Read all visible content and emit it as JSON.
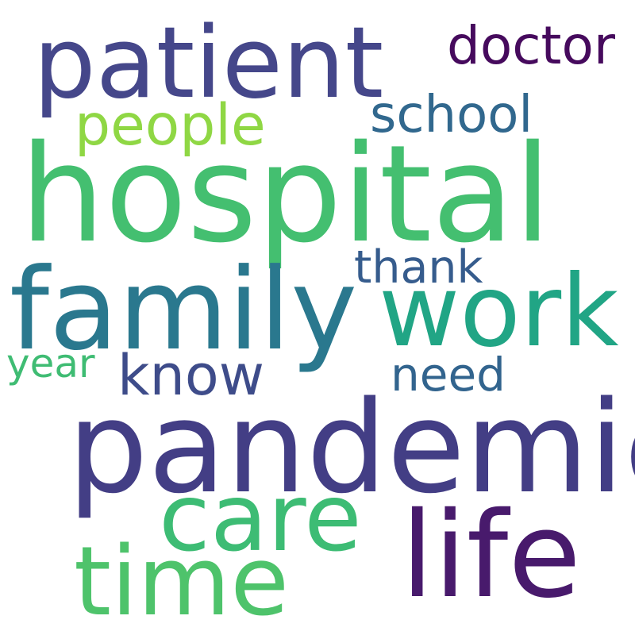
{
  "background": "#ffffff",
  "words": [
    {
      "text": "patient",
      "color": "#45478a"
    },
    {
      "text": "doctor",
      "color": "#460a5d"
    },
    {
      "text": "people",
      "color": "#8fd744"
    },
    {
      "text": "school",
      "color": "#31688e"
    },
    {
      "text": "hospital",
      "color": "#44bf70"
    },
    {
      "text": "thank",
      "color": "#365c8d"
    },
    {
      "text": "family",
      "color": "#2a788e"
    },
    {
      "text": "work",
      "color": "#21a585"
    },
    {
      "text": "year",
      "color": "#3fbc73"
    },
    {
      "text": "know",
      "color": "#3e4c8a"
    },
    {
      "text": "need",
      "color": "#32648e"
    },
    {
      "text": "pandemic",
      "color": "#433e85"
    },
    {
      "text": "care",
      "color": "#3dbc74"
    },
    {
      "text": "life",
      "color": "#481a6c"
    },
    {
      "text": "time",
      "color": "#4ec36b"
    }
  ]
}
